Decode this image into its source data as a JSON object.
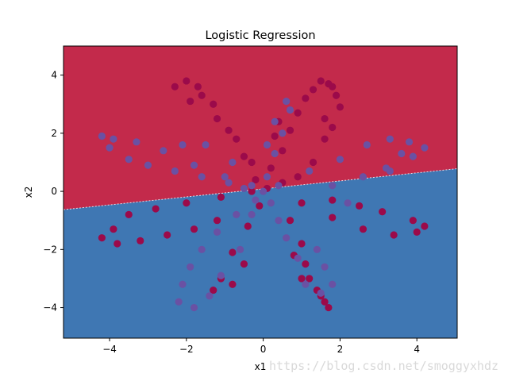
{
  "chart_data": {
    "type": "scatter",
    "title": "Logistic Regression",
    "xlabel": "x1",
    "ylabel": "x2",
    "xlim": [
      -5.2,
      5.05
    ],
    "ylim": [
      -5.05,
      5.0
    ],
    "xticks": [
      -4,
      -2,
      0,
      2,
      4
    ],
    "yticks": [
      -4,
      -2,
      0,
      2,
      4
    ],
    "xtick_labels": [
      "−4",
      "−2",
      "0",
      "2",
      "4"
    ],
    "ytick_labels": [
      "−4",
      "−2",
      "0",
      "2",
      "4"
    ],
    "grid": false,
    "decision_boundary": {
      "description": "linear boundary",
      "points": [
        [
          -5.2,
          -0.63
        ],
        [
          5.05,
          0.78
        ]
      ],
      "upper_region_color": "#c32a4b",
      "lower_region_color": "#3f77b3"
    },
    "series": [
      {
        "color": "#9b0a4a",
        "points": [
          [
            0.1,
            0.1
          ],
          [
            0.5,
            1.4
          ],
          [
            0.7,
            2.1
          ],
          [
            0.9,
            2.7
          ],
          [
            1.1,
            3.2
          ],
          [
            1.3,
            3.5
          ],
          [
            1.5,
            3.8
          ],
          [
            1.8,
            3.6
          ],
          [
            1.9,
            3.3
          ],
          [
            2.0,
            2.9
          ],
          [
            1.8,
            2.2
          ],
          [
            1.6,
            1.8
          ],
          [
            1.3,
            1.0
          ],
          [
            0.9,
            0.5
          ],
          [
            0.5,
            0.3
          ],
          [
            1.0,
            -0.4
          ],
          [
            1.8,
            -0.9
          ],
          [
            2.6,
            -1.3
          ],
          [
            3.4,
            -1.5
          ],
          [
            4.0,
            -1.4
          ],
          [
            4.2,
            -1.2
          ],
          [
            3.9,
            -1.0
          ],
          [
            3.1,
            -0.7
          ],
          [
            2.5,
            -0.5
          ],
          [
            1.8,
            -0.3
          ],
          [
            0.7,
            -1.0
          ],
          [
            1.0,
            -1.8
          ],
          [
            1.1,
            -2.5
          ],
          [
            1.2,
            -3.0
          ],
          [
            1.4,
            -3.4
          ],
          [
            1.6,
            -3.8
          ],
          [
            1.7,
            -4.0
          ],
          [
            1.5,
            -3.6
          ],
          [
            1.0,
            -3.0
          ],
          [
            0.8,
            -2.2
          ],
          [
            -0.3,
            0.0
          ],
          [
            -1.1,
            -0.2
          ],
          [
            -2.0,
            -0.4
          ],
          [
            -2.8,
            -0.6
          ],
          [
            -3.5,
            -0.8
          ],
          [
            -3.9,
            -1.3
          ],
          [
            -4.2,
            -1.6
          ],
          [
            -3.8,
            -1.8
          ],
          [
            -3.2,
            -1.7
          ],
          [
            -2.5,
            -1.5
          ],
          [
            -1.8,
            -1.3
          ],
          [
            -1.2,
            -1.0
          ],
          [
            -0.1,
            -0.5
          ],
          [
            -0.4,
            -1.2
          ],
          [
            -0.8,
            -2.1
          ],
          [
            -1.1,
            -3.0
          ],
          [
            -1.3,
            -3.4
          ],
          [
            -0.8,
            -3.2
          ],
          [
            -0.5,
            -2.5
          ],
          [
            -0.2,
            0.4
          ],
          [
            -0.5,
            1.2
          ],
          [
            -0.9,
            2.1
          ],
          [
            -1.3,
            3.0
          ],
          [
            -1.7,
            3.6
          ],
          [
            -2.0,
            3.8
          ],
          [
            -1.6,
            3.3
          ],
          [
            -1.2,
            2.5
          ],
          [
            -0.7,
            1.8
          ],
          [
            -0.3,
            1.0
          ],
          [
            0.2,
            0.8
          ],
          [
            0.3,
            1.9
          ],
          [
            0.4,
            2.4
          ],
          [
            -2.3,
            3.6
          ],
          [
            -1.9,
            3.1
          ],
          [
            1.6,
            2.5
          ],
          [
            1.7,
            3.7
          ]
        ]
      },
      {
        "color": "#6a51a3",
        "points": [
          [
            0.0,
            0.0
          ],
          [
            -0.3,
            0.2
          ],
          [
            -1.0,
            0.5
          ],
          [
            -1.8,
            0.9
          ],
          [
            -2.6,
            1.4
          ],
          [
            -3.3,
            1.7
          ],
          [
            -3.9,
            1.8
          ],
          [
            -4.2,
            1.9
          ],
          [
            -4.0,
            1.5
          ],
          [
            -3.5,
            1.1
          ],
          [
            -3.0,
            0.9
          ],
          [
            -2.3,
            0.7
          ],
          [
            -1.6,
            0.5
          ],
          [
            -0.9,
            0.3
          ],
          [
            0.4,
            0.2
          ],
          [
            1.2,
            0.7
          ],
          [
            2.0,
            1.1
          ],
          [
            2.7,
            1.6
          ],
          [
            3.3,
            1.8
          ],
          [
            3.8,
            1.7
          ],
          [
            4.2,
            1.5
          ],
          [
            3.9,
            1.2
          ],
          [
            3.2,
            0.8
          ],
          [
            2.6,
            0.5
          ],
          [
            1.8,
            0.2
          ],
          [
            0.1,
            0.5
          ],
          [
            0.3,
            1.3
          ],
          [
            0.5,
            2.0
          ],
          [
            0.7,
            2.8
          ],
          [
            0.6,
            3.1
          ],
          [
            0.3,
            2.4
          ],
          [
            0.1,
            1.6
          ],
          [
            -0.2,
            -0.3
          ],
          [
            -0.7,
            -0.8
          ],
          [
            -1.2,
            -1.4
          ],
          [
            -1.6,
            -2.0
          ],
          [
            -1.9,
            -2.6
          ],
          [
            -2.1,
            -3.2
          ],
          [
            -2.2,
            -3.8
          ],
          [
            -1.8,
            -4.0
          ],
          [
            -1.4,
            -3.6
          ],
          [
            -1.1,
            -2.9
          ],
          [
            -0.6,
            -2.0
          ],
          [
            0.2,
            -0.4
          ],
          [
            0.4,
            -1.0
          ],
          [
            0.6,
            -1.6
          ],
          [
            0.9,
            -2.3
          ],
          [
            1.1,
            -3.2
          ],
          [
            1.5,
            -3.5
          ],
          [
            1.8,
            -3.2
          ],
          [
            1.6,
            -2.6
          ],
          [
            1.4,
            -2.0
          ],
          [
            -0.5,
            0.1
          ],
          [
            -0.8,
            1.0
          ],
          [
            -1.5,
            1.6
          ],
          [
            -2.1,
            1.6
          ],
          [
            3.3,
            0.7
          ],
          [
            3.6,
            1.3
          ],
          [
            2.2,
            -0.4
          ],
          [
            -0.3,
            -0.8
          ]
        ]
      }
    ]
  },
  "watermark": "https://blog.csdn.net/smoggyxhdz"
}
